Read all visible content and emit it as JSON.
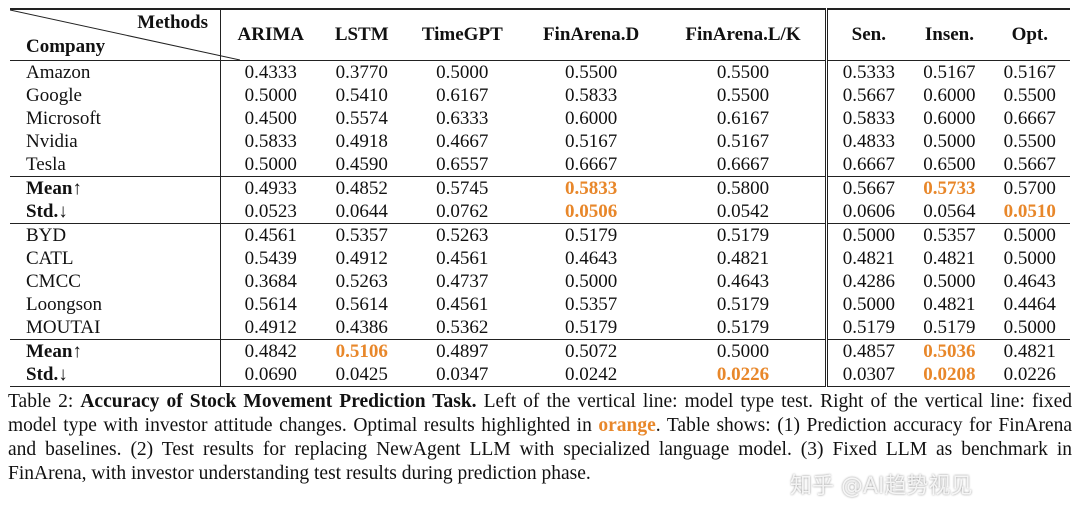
{
  "table": {
    "header": {
      "corner_top": "Methods",
      "corner_bottom": "Company",
      "methods": [
        "ARIMA",
        "LSTM",
        "TimeGPT",
        "FinArena.D",
        "FinArena.L/K",
        "Sen.",
        "Insen.",
        "Opt."
      ]
    },
    "highlight_color": "#e8872a",
    "groups": [
      {
        "rows": [
          {
            "company": "Amazon",
            "values": [
              "0.4333",
              "0.3770",
              "0.5000",
              "0.5500",
              "0.5500",
              "0.5333",
              "0.5167",
              "0.5167"
            ]
          },
          {
            "company": "Google",
            "values": [
              "0.5000",
              "0.5410",
              "0.6167",
              "0.5833",
              "0.5500",
              "0.5667",
              "0.6000",
              "0.5500"
            ]
          },
          {
            "company": "Microsoft",
            "values": [
              "0.4500",
              "0.5574",
              "0.6333",
              "0.6000",
              "0.6167",
              "0.5833",
              "0.6000",
              "0.6667"
            ]
          },
          {
            "company": "Nvidia",
            "values": [
              "0.5833",
              "0.4918",
              "0.4667",
              "0.5167",
              "0.5167",
              "0.4833",
              "0.5000",
              "0.5500"
            ]
          },
          {
            "company": "Tesla",
            "values": [
              "0.5000",
              "0.4590",
              "0.6557",
              "0.6667",
              "0.6667",
              "0.6667",
              "0.6500",
              "0.5667"
            ]
          }
        ],
        "summary": [
          {
            "company": "Mean↑",
            "values": [
              "0.4933",
              "0.4852",
              "0.5745",
              "0.5833",
              "0.5800",
              "0.5667",
              "0.5733",
              "0.5700"
            ],
            "highlight": [
              3,
              6
            ]
          },
          {
            "company": "Std.↓",
            "values": [
              "0.0523",
              "0.0644",
              "0.0762",
              "0.0506",
              "0.0542",
              "0.0606",
              "0.0564",
              "0.0510"
            ],
            "highlight": [
              3,
              7
            ]
          }
        ]
      },
      {
        "rows": [
          {
            "company": "BYD",
            "values": [
              "0.4561",
              "0.5357",
              "0.5263",
              "0.5179",
              "0.5179",
              "0.5000",
              "0.5357",
              "0.5000"
            ]
          },
          {
            "company": "CATL",
            "values": [
              "0.5439",
              "0.4912",
              "0.4561",
              "0.4643",
              "0.4821",
              "0.4821",
              "0.4821",
              "0.5000"
            ]
          },
          {
            "company": "CMCC",
            "values": [
              "0.3684",
              "0.5263",
              "0.4737",
              "0.5000",
              "0.4643",
              "0.4286",
              "0.5000",
              "0.4643"
            ]
          },
          {
            "company": "Loongson",
            "values": [
              "0.5614",
              "0.5614",
              "0.4561",
              "0.5357",
              "0.5179",
              "0.5000",
              "0.4821",
              "0.4464"
            ]
          },
          {
            "company": "MOUTAI",
            "values": [
              "0.4912",
              "0.4386",
              "0.5362",
              "0.5179",
              "0.5179",
              "0.5179",
              "0.5179",
              "0.5000"
            ]
          }
        ],
        "summary": [
          {
            "company": "Mean↑",
            "values": [
              "0.4842",
              "0.5106",
              "0.4897",
              "0.5072",
              "0.5000",
              "0.4857",
              "0.5036",
              "0.4821"
            ],
            "highlight": [
              1,
              6
            ]
          },
          {
            "company": "Std.↓",
            "values": [
              "0.0690",
              "0.0425",
              "0.0347",
              "0.0242",
              "0.0226",
              "0.0307",
              "0.0208",
              "0.0226"
            ],
            "highlight": [
              4,
              6
            ]
          }
        ]
      }
    ]
  },
  "caption": {
    "label": "Table 2:",
    "title": "Accuracy of Stock Movement Prediction Task.",
    "text": "Left of the vertical line: model type test. Right of the vertical line: fixed model type with investor attitude changes. Optimal results highlighted in",
    "highlight": "orange",
    "rest": ". Table shows: (1) Prediction accuracy for FinArena and baselines. (2) Test results for replacing NewAgent LLM with specialized language model. (3) Fixed LLM as benchmark in FinArena, with investor understanding test results during prediction phase."
  },
  "watermark": "知乎 @AI趋势视见"
}
